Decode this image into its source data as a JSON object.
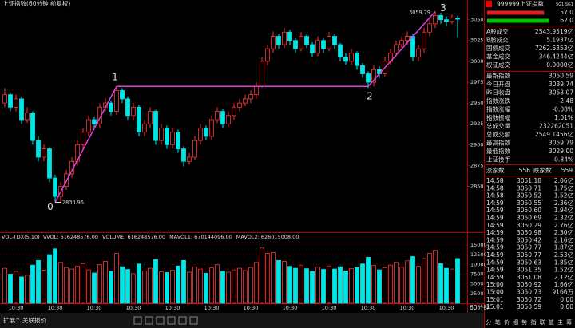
{
  "window_title": "上证指数(60分钟 前复权)",
  "price_chart": {
    "ylim": [
      2796,
      3064
    ],
    "yticks": [
      2850,
      2875,
      2900,
      2925,
      2950,
      2975,
      3000,
      3025,
      3050
    ],
    "up_color": "#ff3232",
    "down_color": "#00e6e6",
    "candles": [
      [
        2950,
        2968,
        2945,
        2960
      ],
      [
        2960,
        2962,
        2940,
        2945
      ],
      [
        2945,
        2960,
        2940,
        2955
      ],
      [
        2955,
        2958,
        2925,
        2930
      ],
      [
        2930,
        2945,
        2926,
        2938
      ],
      [
        2938,
        2940,
        2900,
        2905
      ],
      [
        2905,
        2910,
        2880,
        2885
      ],
      [
        2885,
        2900,
        2880,
        2895
      ],
      [
        2895,
        2897,
        2855,
        2860
      ],
      [
        2860,
        2864,
        2830.96,
        2838
      ],
      [
        2838,
        2855,
        2832,
        2850
      ],
      [
        2850,
        2870,
        2846,
        2865
      ],
      [
        2865,
        2885,
        2860,
        2880
      ],
      [
        2880,
        2905,
        2876,
        2900
      ],
      [
        2900,
        2920,
        2895,
        2915
      ],
      [
        2915,
        2935,
        2910,
        2930
      ],
      [
        2930,
        2934,
        2918,
        2925
      ],
      [
        2925,
        2950,
        2920,
        2945
      ],
      [
        2945,
        2956,
        2940,
        2950
      ],
      [
        2950,
        2953,
        2935,
        2940
      ],
      [
        2940,
        2970,
        2936,
        2965
      ],
      [
        2965,
        2968,
        2950,
        2955
      ],
      [
        2955,
        2958,
        2930,
        2935
      ],
      [
        2935,
        2950,
        2930,
        2945
      ],
      [
        2945,
        2948,
        2910,
        2915
      ],
      [
        2915,
        2930,
        2910,
        2925
      ],
      [
        2925,
        2945,
        2920,
        2940
      ],
      [
        2940,
        2942,
        2900,
        2905
      ],
      [
        2905,
        2925,
        2900,
        2920
      ],
      [
        2920,
        2923,
        2895,
        2900
      ],
      [
        2900,
        2920,
        2896,
        2915
      ],
      [
        2915,
        2918,
        2890,
        2895
      ],
      [
        2895,
        2898,
        2874,
        2880
      ],
      [
        2880,
        2890,
        2876,
        2885
      ],
      [
        2885,
        2910,
        2882,
        2905
      ],
      [
        2905,
        2925,
        2900,
        2920
      ],
      [
        2920,
        2923,
        2905,
        2910
      ],
      [
        2910,
        2935,
        2906,
        2930
      ],
      [
        2930,
        2945,
        2926,
        2940
      ],
      [
        2940,
        2943,
        2920,
        2925
      ],
      [
        2925,
        2940,
        2921,
        2935
      ],
      [
        2935,
        2950,
        2930,
        2945
      ],
      [
        2945,
        2955,
        2940,
        2950
      ],
      [
        2950,
        2960,
        2946,
        2955
      ],
      [
        2955,
        2965,
        2950,
        2960
      ],
      [
        2960,
        2975,
        2955,
        2970
      ],
      [
        2970,
        3005,
        2968,
        3000
      ],
      [
        3000,
        3020,
        2995,
        3015
      ],
      [
        3015,
        3036,
        3010,
        3030
      ],
      [
        3030,
        3033,
        3015,
        3020
      ],
      [
        3020,
        3040,
        3016,
        3035
      ],
      [
        3035,
        3038,
        3020,
        3025
      ],
      [
        3025,
        3028,
        3010,
        3015
      ],
      [
        3015,
        3035,
        3012,
        3030
      ],
      [
        3030,
        3032,
        3016,
        3020
      ],
      [
        3020,
        3023,
        3005,
        3010
      ],
      [
        3010,
        3030,
        3006,
        3025
      ],
      [
        3025,
        3028,
        3010,
        3015
      ],
      [
        3015,
        3035,
        3012,
        3030
      ],
      [
        3030,
        3033,
        3015,
        3020
      ],
      [
        3020,
        3022,
        3000,
        3005
      ],
      [
        3005,
        3010,
        2996,
        3000
      ],
      [
        3000,
        3015,
        2996,
        3010
      ],
      [
        3010,
        3012,
        2990,
        2995
      ],
      [
        2995,
        2998,
        2980,
        2985
      ],
      [
        2985,
        2988,
        2968,
        2975
      ],
      [
        2975,
        2995,
        2970,
        2990
      ],
      [
        2990,
        2994,
        2980,
        2985
      ],
      [
        2985,
        3005,
        2982,
        3000
      ],
      [
        3000,
        3015,
        2996,
        3010
      ],
      [
        3010,
        3025,
        3006,
        3020
      ],
      [
        3020,
        3030,
        3016,
        3025
      ],
      [
        3025,
        3036,
        3020,
        3030
      ],
      [
        3030,
        3033,
        3000,
        3005
      ],
      [
        3005,
        3020,
        3000,
        3015
      ],
      [
        3015,
        3040,
        3010,
        3035
      ],
      [
        3035,
        3050,
        3030,
        3045
      ],
      [
        3045,
        3059.79,
        3040,
        3055
      ],
      [
        3055,
        3058,
        3045,
        3050
      ],
      [
        3050,
        3054,
        3042,
        3048
      ],
      [
        3048,
        3056,
        3045,
        3052
      ],
      [
        3052,
        3055,
        3029,
        3050.59
      ]
    ],
    "waves": {
      "x": [
        9,
        20,
        65,
        77
      ],
      "y": [
        2830.96,
        2970,
        2970,
        3059.79
      ],
      "labels": [
        "0",
        "1",
        "2",
        "3"
      ],
      "color": "#e040e0"
    },
    "high_label": "3059.79",
    "low_label": "2830.96",
    "period_label": "60分钟",
    "time_labels": [
      null,
      null,
      "10:30",
      null,
      null,
      null,
      null,
      null,
      null,
      "10:30",
      null,
      null,
      null,
      null,
      null,
      null,
      "10:30",
      null,
      null,
      null,
      null,
      null,
      null,
      "10:30",
      null,
      null,
      null,
      null,
      null,
      null,
      "10:30",
      null,
      null,
      null,
      null,
      null,
      null,
      "10:30",
      null,
      null,
      null,
      null,
      null,
      null,
      "10:30",
      null,
      null,
      null,
      null,
      null,
      null,
      "10:30",
      null,
      null,
      null,
      null,
      null,
      null,
      "10:30",
      null,
      null,
      null,
      null,
      null,
      null,
      "10:30",
      null,
      null,
      null,
      null,
      null,
      null,
      "10:30",
      null,
      null,
      null,
      null,
      null,
      null,
      "10:30",
      null,
      null,
      null,
      null,
      null
    ]
  },
  "volume_chart": {
    "indicator": "VOL-TDX(5,10)",
    "legend": [
      {
        "text": "VVOL: 616248576.00",
        "color": "#dddddd"
      },
      {
        "text": "VOLUME: 616248576.00",
        "color": "#ffff00"
      },
      {
        "text": "MAVOL1: 670144096.00",
        "color": "#ff40ff"
      },
      {
        "text": "MAVOL2: 626015008.00",
        "color": "#40ff40"
      }
    ],
    "ylim": [
      0,
      16000
    ],
    "yticks": [
      2500,
      5000,
      7500,
      10000,
      12500,
      15000
    ],
    "values": [
      9000,
      7500,
      8200,
      6800,
      7200,
      9800,
      11000,
      8500,
      12500,
      14000,
      10500,
      9200,
      8800,
      9500,
      10200,
      8600,
      7800,
      9900,
      10800,
      8200,
      12800,
      9400,
      8700,
      7600,
      10100,
      8300,
      9000,
      11200,
      8100,
      7900,
      8500,
      9600,
      11000,
      8000,
      9300,
      8800,
      7700,
      9100,
      9900,
      8200,
      8000,
      8600,
      9000,
      8400,
      9200,
      10500,
      14200,
      12800,
      13000,
      11000,
      10800,
      9500,
      9000,
      9800,
      8900,
      8200,
      9300,
      8700,
      9600,
      8800,
      9400,
      8300,
      8900,
      9200,
      10100,
      11800,
      9700,
      8600,
      9100,
      9800,
      10500,
      9300,
      10900,
      12000,
      9500,
      11500,
      12800,
      13600,
      10200,
      9000,
      8800,
      11500
    ]
  },
  "quote_panel": {
    "code": "999999",
    "name": "上证指数",
    "tags": "SG1 SG1",
    "bars": [
      {
        "value": 57,
        "label": "57.0",
        "color": "#e02020"
      },
      {
        "value": 62,
        "label": "62.0",
        "color": "#00c000"
      }
    ],
    "stats": [
      {
        "label": "A股成交",
        "value": "2543.9519亿",
        "color": "#ffff00"
      },
      {
        "label": "B股成交",
        "value": "5.1937亿",
        "color": "#ffff00"
      },
      {
        "label": "国债成交",
        "value": "7262.6353亿",
        "color": "#ffff00"
      },
      {
        "label": "基金成交",
        "value": "346.4244亿",
        "color": "#ffff00"
      },
      {
        "label": "权证成交",
        "value": "0.0000亿",
        "color": "#ffff00"
      },
      {
        "label": "最新指数",
        "value": "3050.59",
        "color": "#00e000"
      },
      {
        "label": "今日开盘",
        "value": "3039.74",
        "color": "#00e000"
      },
      {
        "label": "昨日收盘",
        "value": "3053.07",
        "color": "#ffffff"
      },
      {
        "label": "指数涨跌",
        "value": "-2.48",
        "color": "#00e000"
      },
      {
        "label": "指数涨幅",
        "value": "-0.08%",
        "color": "#00e000"
      },
      {
        "label": "指数振幅",
        "value": "1.01%",
        "color": "#ffffff"
      },
      {
        "label": "总成交量",
        "value": "232262051",
        "color": "#ffff00"
      },
      {
        "label": "总成交额",
        "value": "2549.1456亿",
        "color": "#ffff00"
      },
      {
        "label": "最高指数",
        "value": "3059.79",
        "color": "#ff3030"
      },
      {
        "label": "最低指数",
        "value": "3029.00",
        "color": "#00e000"
      },
      {
        "label": "上证换手",
        "value": "0.84%",
        "color": "#ffffff"
      }
    ],
    "advance_label": "涨家数",
    "advance": "556",
    "decline_label": "跌家数",
    "decline": "559",
    "ticks": [
      [
        "14:58",
        "3051.18",
        "2.06亿"
      ],
      [
        "14:58",
        "3050.71",
        "1.75亿"
      ],
      [
        "14:58",
        "3050.52",
        "1.52亿"
      ],
      [
        "14:59",
        "3050.55",
        "2.36亿"
      ],
      [
        "14:59",
        "3050.60",
        "1.94亿"
      ],
      [
        "14:59",
        "3050.69",
        "2.32亿"
      ],
      [
        "14:59",
        "3050.29",
        "2.76亿"
      ],
      [
        "14:59",
        "3050.98",
        "2.30亿"
      ],
      [
        "14:59",
        "3050.42",
        "2.16亿"
      ],
      [
        "14:59",
        "3050.77",
        "1.87亿"
      ],
      [
        "14:59",
        "3050.77",
        "2.53亿"
      ],
      [
        "14:59",
        "3050.63",
        "1.85亿"
      ],
      [
        "14:59",
        "3051.35",
        "1.52亿"
      ],
      [
        "14:59",
        "3051.08",
        "2.12亿"
      ],
      [
        "15:00",
        "3050.92",
        "1.66亿"
      ],
      [
        "15:00",
        "3050.73",
        "9166万"
      ],
      [
        "15:01",
        "3050.72",
        "0.00"
      ],
      [
        "15:01",
        "3050.59",
        "0.00"
      ]
    ],
    "tabs": [
      "分",
      "笔",
      "价",
      "细",
      "势",
      "指",
      "联",
      "值",
      "主",
      "筹"
    ]
  },
  "bottom_bar": {
    "expand": "扩展^",
    "related": "关联报价"
  }
}
